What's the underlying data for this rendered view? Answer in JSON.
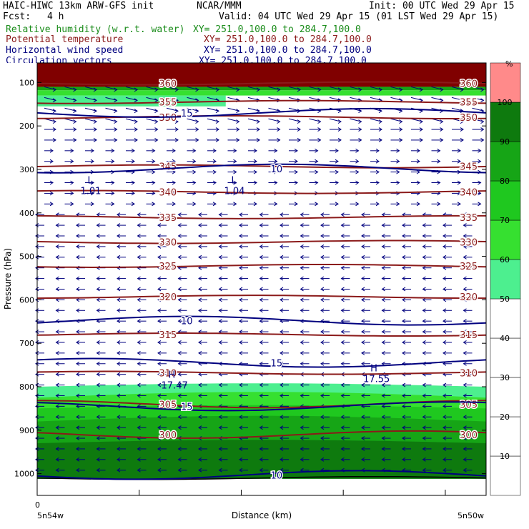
{
  "header": {
    "line1_left": "HAIC-HIWC 13km ARW-GFS init",
    "line1_mid": "NCAR/MMM",
    "line1_right": "Init: 00 UTC Wed 29 Apr 15",
    "fcst_label": "Fcst:",
    "fcst_value": "4 h",
    "valid": "Valid: 04 UTC Wed 29 Apr 15 (01 LST Wed 29 Apr 15)",
    "fields": [
      {
        "name": "Relative humidity (w.r.t. water)",
        "xy": "XY= 251.0,100.0 to 284.7,100.0",
        "color": "#1a8c1a"
      },
      {
        "name": "Potential temperature",
        "xy": "XY= 251.0,100.0 to 284.7,100.0",
        "color": "#8b1a1a"
      },
      {
        "name": "Horizontal wind speed",
        "xy": "XY= 251.0,100.0 to 284.7,100.0",
        "color": "#00007f"
      },
      {
        "name": "Circulation vectors",
        "xy": "XY= 251.0,100.0 to 284.7,100.0",
        "color": "#00007f"
      }
    ]
  },
  "chart_data": {
    "type": "heatmap",
    "title": "",
    "xlabel": "Distance (km)",
    "ylabel": "Pressure (hPa)",
    "x_tick_zero": "0",
    "x_left_label": "5n54w",
    "x_right_label": "5n50w",
    "y_ticks": [
      100,
      200,
      300,
      400,
      500,
      600,
      700,
      800,
      900,
      1000
    ],
    "ylim": [
      1050,
      55
    ],
    "colorbar": {
      "unit": "%",
      "levels": [
        10,
        20,
        30,
        40,
        50,
        60,
        70,
        80,
        90,
        100
      ],
      "colors": [
        "#ffffff",
        "#ffffff",
        "#ffffff",
        "#ffffff",
        "#ffffff",
        "#4def8f",
        "#36e030",
        "#1fc81f",
        "#16a516",
        "#0e7a0e",
        "#ff8a8a"
      ]
    },
    "theta_contours": [
      {
        "label": "360",
        "p": 102
      },
      {
        "label": "355",
        "p": 145
      },
      {
        "label": "350",
        "p": 180
      },
      {
        "label": "345",
        "p": 293
      },
      {
        "label": "340",
        "p": 352
      },
      {
        "label": "335",
        "p": 410
      },
      {
        "label": "330",
        "p": 467
      },
      {
        "label": "325",
        "p": 522
      },
      {
        "label": "320",
        "p": 593
      },
      {
        "label": "315",
        "p": 680
      },
      {
        "label": "310",
        "p": 768
      },
      {
        "label": "305",
        "p": 840
      },
      {
        "label": "300",
        "p": 910
      }
    ],
    "wind_contours": [
      {
        "label": "15",
        "p": 170
      },
      {
        "label": "10",
        "p": 298
      },
      {
        "label": "10",
        "p": 648
      },
      {
        "label": "15",
        "p": 745
      },
      {
        "label": "15",
        "p": 845
      },
      {
        "label": "10",
        "p": 1003
      }
    ],
    "annotations": [
      {
        "text": "L",
        "value": "1.01",
        "p": 345,
        "x": 0.16
      },
      {
        "text": "L",
        "value": "1.04",
        "p": 345,
        "x": 0.48
      },
      {
        "text": "H",
        "value": "17.47",
        "p": 793,
        "x": 0.34
      },
      {
        "text": "H",
        "value": "17.55",
        "p": 778,
        "x": 0.79
      }
    ]
  }
}
